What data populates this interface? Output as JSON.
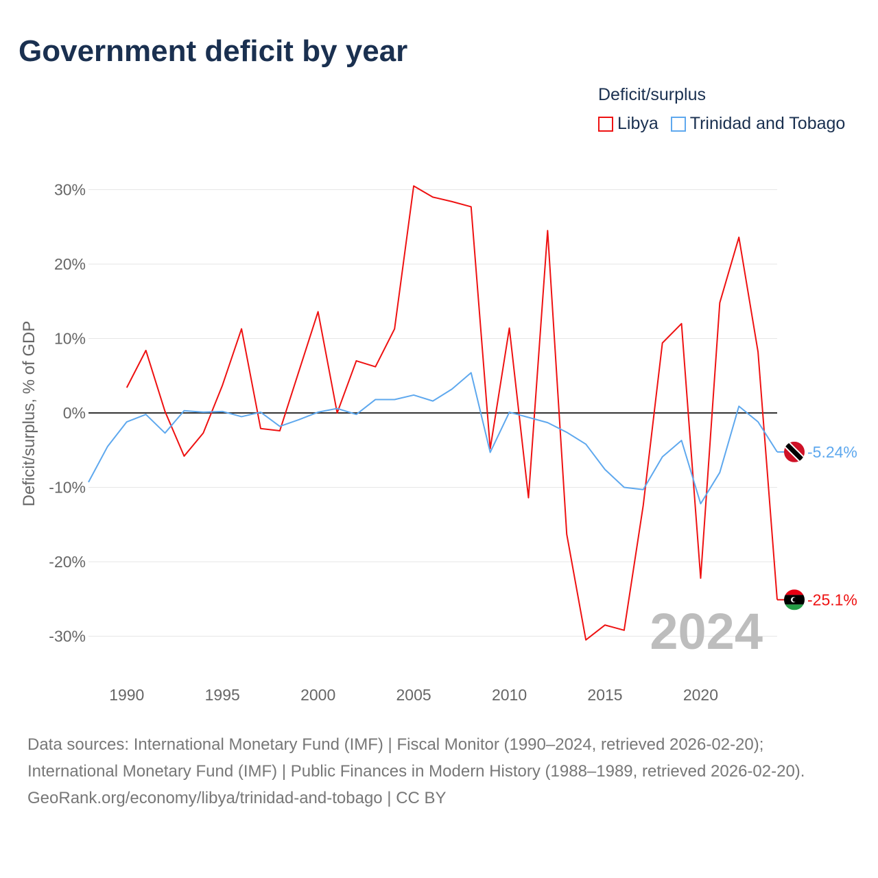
{
  "title": "Government deficit by year",
  "legend": {
    "title": "Deficit/surplus",
    "items": [
      "Libya",
      "Trinidad and Tobago"
    ]
  },
  "footer": {
    "sources": "Data sources: International Monetary Fund (IMF) | Fiscal Monitor (1990–2024, retrieved 2026-02-20); International Monetary Fund (IMF) | Public Finances in Modern History (1988–1989, retrieved 2026-02-20).",
    "credit": "GeoRank.org/economy/libya/trinidad-and-tobago | CC BY"
  },
  "chart_data": {
    "type": "line",
    "title": "Government deficit by year",
    "xlabel": "",
    "ylabel": "Deficit/surplus, % of GDP",
    "xlim": [
      1988,
      2024
    ],
    "ylim": [
      -35,
      30
    ],
    "x_ticks": [
      1990,
      1995,
      2000,
      2005,
      2010,
      2015,
      2020
    ],
    "y_ticks": [
      30,
      20,
      10,
      0,
      -10,
      -20,
      -30
    ],
    "y_tick_labels": [
      "30%",
      "20%",
      "10%",
      "0%",
      "-10%",
      "-20%",
      "-30%"
    ],
    "year_watermark": "2024",
    "grid": true,
    "legend_position": "top-right",
    "series": [
      {
        "name": "Libya",
        "color": "#ee1111",
        "end_label": "-25.1%",
        "flag": "libya",
        "x": [
          1990,
          1991,
          1992,
          1993,
          1994,
          1995,
          1996,
          1997,
          1998,
          1999,
          2000,
          2001,
          2002,
          2003,
          2004,
          2005,
          2006,
          2007,
          2008,
          2009,
          2010,
          2011,
          2012,
          2013,
          2014,
          2015,
          2016,
          2017,
          2018,
          2019,
          2020,
          2021,
          2022,
          2023,
          2024
        ],
        "values": [
          3.4,
          8.4,
          0.2,
          -5.8,
          -2.7,
          3.7,
          11.3,
          -2.1,
          -2.4,
          5.6,
          13.6,
          0,
          7.0,
          6.2,
          11.3,
          30.5,
          29.0,
          28.4,
          27.7,
          -4.8,
          11.4,
          -11.4,
          24.5,
          -16.3,
          -30.5,
          -28.5,
          -29.2,
          -12.4,
          9.4,
          12.0,
          -22.2,
          14.8,
          23.6,
          8.2,
          -25.1
        ]
      },
      {
        "name": "Trinidad and Tobago",
        "color": "#5ea8ee",
        "end_label": "-5.24%",
        "flag": "trinidad",
        "x": [
          1988,
          1989,
          1990,
          1991,
          1992,
          1993,
          1994,
          1995,
          1996,
          1997,
          1998,
          1999,
          2000,
          2001,
          2002,
          2003,
          2004,
          2005,
          2006,
          2007,
          2008,
          2009,
          2010,
          2011,
          2012,
          2013,
          2014,
          2015,
          2016,
          2017,
          2018,
          2019,
          2020,
          2021,
          2022,
          2023,
          2024
        ],
        "values": [
          -9.3,
          -4.5,
          -1.2,
          -0.2,
          -2.7,
          0.3,
          0.1,
          0.2,
          -0.5,
          0.1,
          -1.8,
          -0.9,
          0.1,
          0.6,
          -0.2,
          1.8,
          1.8,
          2.4,
          1.6,
          3.2,
          5.4,
          -5.3,
          0.1,
          -0.6,
          -1.3,
          -2.6,
          -4.2,
          -7.6,
          -10.0,
          -10.3,
          -5.9,
          -3.7,
          -12.2,
          -8.0,
          0.9,
          -1.2,
          -5.24
        ]
      }
    ]
  }
}
